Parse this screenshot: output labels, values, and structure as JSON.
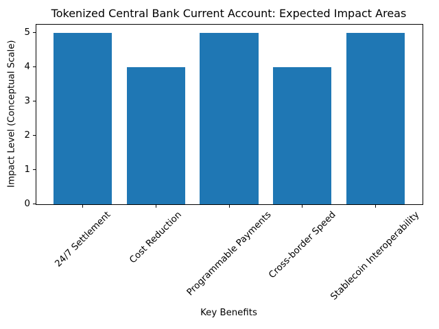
{
  "chart_data": {
    "type": "bar",
    "title": "Tokenized Central Bank Current Account: Expected Impact Areas",
    "xlabel": "Key Benefits",
    "ylabel": "Impact Level (Conceptual Scale)",
    "categories": [
      "24/7 Settlement",
      "Cost Reduction",
      "Programmable Payments",
      "Cross-border Speed",
      "Stablecoin Interoperability"
    ],
    "values": [
      5,
      4,
      5,
      4,
      5
    ],
    "yticks": [
      0,
      1,
      2,
      3,
      4,
      5
    ],
    "ylim": [
      0,
      5.25
    ],
    "xlim": [
      -0.64,
      4.64
    ],
    "bar_width_fraction": 0.8,
    "bar_color": "#1f77b4",
    "background_color": "#ffffff",
    "text_color": "#000000",
    "grid": false,
    "legend": "none",
    "xtick_label_rotation_deg": 45
  }
}
